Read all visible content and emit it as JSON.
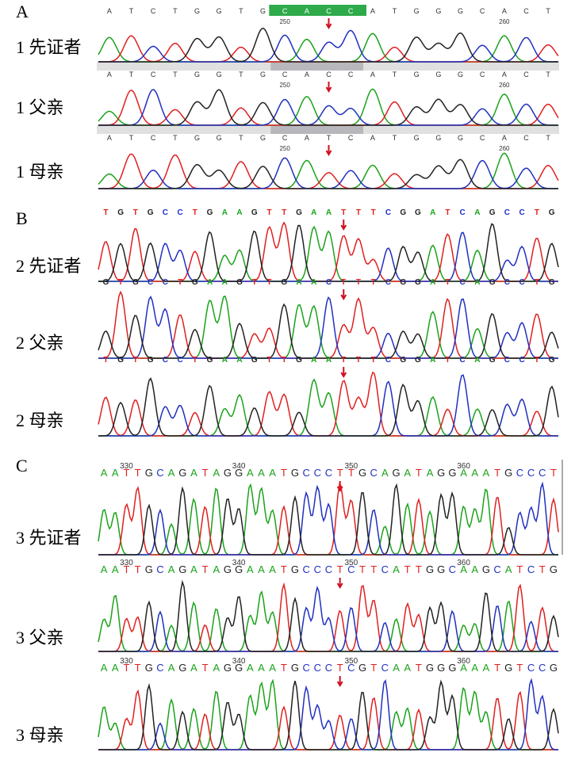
{
  "panels": [
    {
      "label": "A",
      "rows": [
        {
          "label": "1 先证者",
          "sequence": "ATCTGGTGCACCATGGGCACT",
          "ticks": [
            250,
            260
          ]
        },
        {
          "label": "1 父亲",
          "sequence": "ATCTGGTGCACCATGGGCACT",
          "ticks": [
            250,
            260
          ]
        },
        {
          "label": "1 母亲",
          "sequence": "ATCTGGTGCATCATGGGCACT",
          "ticks": [
            250,
            260
          ]
        }
      ]
    },
    {
      "label": "B",
      "rows": [
        {
          "label": "2 先证者",
          "sequence": "TGTGCCTGAAGTTGAATTTCGGATCAGCCTG"
        },
        {
          "label": "2 父亲",
          "sequence": "GTGCCTGAAGTTGAACTTTCGGATCAGCCTG"
        },
        {
          "label": "2 母亲",
          "sequence": "TGTGCCTGAAGTTGAATTTCGGATCAGCCTG"
        }
      ]
    },
    {
      "label": "C",
      "rows": [
        {
          "label": "3 先证者",
          "sequence": "AATTGCAGATAGGAAATGCCCTTGCAGATAGGAAATGCCCT",
          "ticks": [
            330,
            340,
            350,
            360
          ]
        },
        {
          "label": "3 父亲",
          "sequence": "AATTGCAGATAGGAAATGCCCTCTTCATTGGCAAGCATCTG",
          "ticks": [
            330,
            340,
            350,
            360
          ]
        },
        {
          "label": "3 母亲",
          "sequence": "AATTGCAGATAGGAAATGCCCTCGTCAATGGGAAATGTCCG",
          "ticks": [
            330,
            340,
            350,
            360
          ]
        }
      ]
    }
  ]
}
